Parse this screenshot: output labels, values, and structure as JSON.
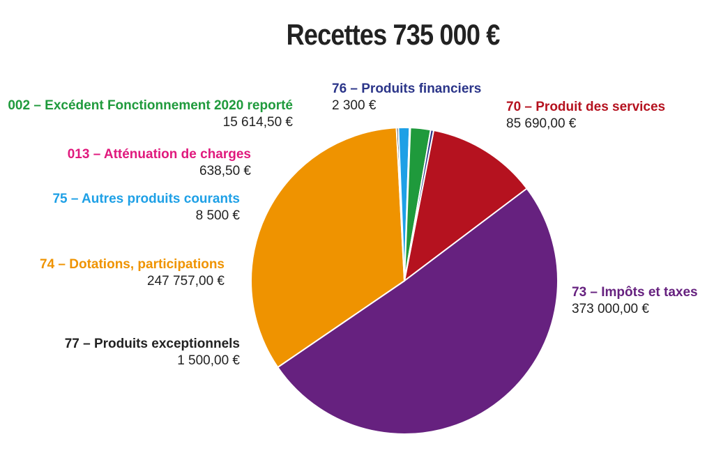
{
  "chart_data": {
    "type": "pie",
    "title": "Recettes 735 000 €",
    "slices": [
      {
        "label": "70 – Produit des services",
        "value_label": "85 690,00 €",
        "value": 85690.0,
        "color": "#b5121f"
      },
      {
        "label": "73 – Impôts et taxes",
        "value_label": "373 000,00 €",
        "value": 373000.0,
        "color": "#66217f"
      },
      {
        "label": "74 – Dotations, participations",
        "value_label": "247 757,00 €",
        "value": 247757.0,
        "color": "#ef9300"
      },
      {
        "label": "77 – Produits exceptionnels",
        "value_label": "1 500,00 €",
        "value": 1500.0,
        "color": "#222222"
      },
      {
        "label": "75 – Autres produits courants",
        "value_label": "8 500 €",
        "value": 8500.0,
        "color": "#1ea0e6"
      },
      {
        "label": "013 – Atténuation de charges",
        "value_label": "638,50 €",
        "value": 638.5,
        "color": "#e0197d"
      },
      {
        "label": "002 – Excédent Fonctionnement 2020 reporté",
        "value_label": "15 614,50 €",
        "value": 15614.5,
        "color": "#1f9a3c"
      },
      {
        "label": "76 – Produits financiers",
        "value_label": "2 300 €",
        "value": 2300.0,
        "color": "#2b3589"
      }
    ]
  }
}
